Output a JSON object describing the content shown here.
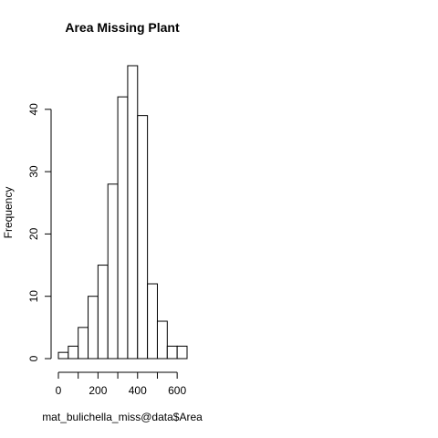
{
  "chart_data": {
    "type": "bar",
    "title": "Area Missing Plant",
    "xlabel": "mat_bulichella_miss@data$Area",
    "ylabel": "Frequency",
    "bins": [
      {
        "from": 0,
        "to": 50,
        "count": 1
      },
      {
        "from": 50,
        "to": 100,
        "count": 2
      },
      {
        "from": 100,
        "to": 150,
        "count": 5
      },
      {
        "from": 150,
        "to": 200,
        "count": 10
      },
      {
        "from": 200,
        "to": 250,
        "count": 15
      },
      {
        "from": 250,
        "to": 300,
        "count": 28
      },
      {
        "from": 300,
        "to": 350,
        "count": 42
      },
      {
        "from": 350,
        "to": 400,
        "count": 47
      },
      {
        "from": 400,
        "to": 450,
        "count": 39
      },
      {
        "from": 450,
        "to": 500,
        "count": 12
      },
      {
        "from": 500,
        "to": 550,
        "count": 6
      },
      {
        "from": 550,
        "to": 600,
        "count": 2
      },
      {
        "from": 600,
        "to": 650,
        "count": 2
      }
    ],
    "xlim": [
      0,
      650
    ],
    "ylim": [
      0,
      47
    ],
    "x_ticks": [
      0,
      100,
      200,
      300,
      400,
      500,
      600
    ],
    "x_tick_labels": [
      "0",
      "200",
      "400",
      "600"
    ],
    "y_ticks": [
      0,
      10,
      20,
      30,
      40
    ],
    "y_tick_labels": [
      "0",
      "10",
      "20",
      "30",
      "40"
    ],
    "grid": false
  }
}
